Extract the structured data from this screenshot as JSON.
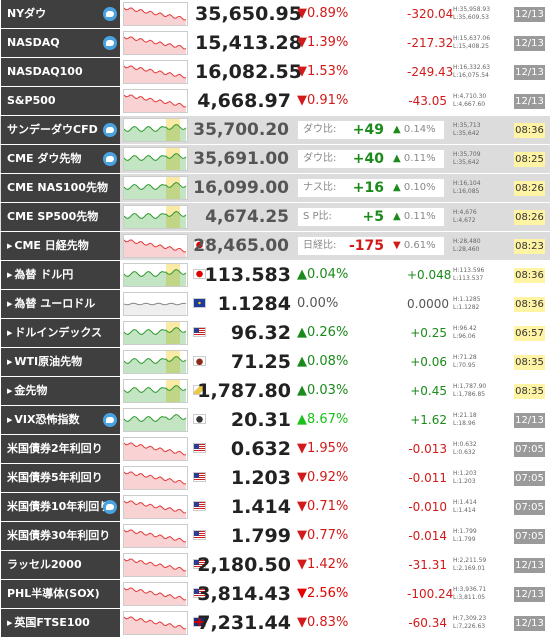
{
  "colors": {
    "up": "#1a8a1a",
    "down": "#d21a1a",
    "name_bg": "#3f3f3f",
    "fut_bg": "#dcdcdc",
    "time_live": "#fff3a4",
    "time_closed": "#9a9a9a"
  },
  "rows": [
    {
      "type": "idx",
      "name": "NYダウ",
      "tw": true,
      "spark": "red",
      "dir": "down",
      "price": "35,650.95",
      "pct": "0.89%",
      "chg": "-320.04",
      "high": "H:35,958.93",
      "low": "L:35,609.53",
      "time": "12/13",
      "timeStyle": "gray"
    },
    {
      "type": "idx",
      "name": "NASDAQ",
      "tw": true,
      "spark": "red",
      "dir": "down",
      "price": "15,413.28",
      "pct": "1.39%",
      "chg": "-217.32",
      "high": "H:15,637.06",
      "low": "L:15,408.25",
      "time": "12/13",
      "timeStyle": "gray"
    },
    {
      "type": "idx",
      "name": "NASDAQ100",
      "tw": false,
      "spark": "red",
      "dir": "down",
      "price": "16,082.55",
      "pct": "1.53%",
      "chg": "-249.43",
      "high": "H:16,332.63",
      "low": "L:16,075.54",
      "time": "12/13",
      "timeStyle": "gray"
    },
    {
      "type": "idx",
      "name": "S&P500",
      "tw": false,
      "spark": "red",
      "dir": "down",
      "price": "4,668.97",
      "pct": "0.91%",
      "chg": "-43.05",
      "high": "H:4,710.30",
      "low": "L:4,667.60",
      "time": "12/13",
      "timeStyle": "gray"
    },
    {
      "type": "fut",
      "name": "サンデーダウCFD",
      "tw": true,
      "spark": "green",
      "price": "35,700.20",
      "label": "ダウ比:",
      "dir": "up",
      "diff": "+49",
      "pct": "0.14%",
      "high": "H:35,713",
      "low": "L:35,642",
      "time": "08:36",
      "timeStyle": "yellow"
    },
    {
      "type": "fut",
      "name": "CME ダウ先物",
      "tw": true,
      "spark": "green",
      "price": "35,691.00",
      "label": "ダウ比:",
      "dir": "up",
      "diff": "+40",
      "pct": "0.11%",
      "high": "H:35,709",
      "low": "L:35,642",
      "time": "08:25",
      "timeStyle": "yellow"
    },
    {
      "type": "fut",
      "name": "CME NAS100先物",
      "tw": false,
      "spark": "green",
      "price": "16,099.00",
      "label": "ナス比:",
      "dir": "up",
      "diff": "+16",
      "pct": "0.10%",
      "high": "H:16,104",
      "low": "L:16,085",
      "time": "08:26",
      "timeStyle": "yellow"
    },
    {
      "type": "fut",
      "name": "CME SP500先物",
      "tw": false,
      "spark": "green",
      "price": "4,674.25",
      "label": "S P比:",
      "dir": "up",
      "diff": "+5",
      "pct": "0.11%",
      "high": "H:4,676",
      "low": "L:4,672",
      "time": "08:26",
      "timeStyle": "yellow"
    },
    {
      "type": "fut",
      "name": "CME 日経先物",
      "tri": true,
      "tw": false,
      "spark": "red",
      "flag": "jp",
      "price": "28,465.00",
      "label": "日経比:",
      "dir": "down",
      "diff": "-175",
      "pct": "0.61%",
      "high": "H:28,480",
      "low": "L:28,460",
      "time": "08:23",
      "timeStyle": "yellow"
    },
    {
      "type": "fx",
      "name": "為替 ドル円",
      "tri": true,
      "tw": false,
      "spark": "green",
      "flag": "jp",
      "dir": "up",
      "price": "113.583",
      "pct": "0.04%",
      "chg": "+0.048",
      "high": "H:113.596",
      "low": "L:113.537",
      "time": "08:36",
      "timeStyle": "yellow"
    },
    {
      "type": "fx",
      "name": "為替 ユーロドル",
      "tri": true,
      "tw": false,
      "spark": "flat",
      "flag": "eu",
      "dir": "flat",
      "price": "1.1284",
      "pct": "0.00%",
      "chg": "0.0000",
      "high": "H:1.1285",
      "low": "L:1.1282",
      "time": "08:36",
      "timeStyle": "yellow"
    },
    {
      "type": "fx",
      "name": "ドルインデックス",
      "tri": true,
      "tw": false,
      "spark": "green",
      "flag": "us",
      "dir": "up",
      "price": "96.32",
      "pct": "0.26%",
      "chg": "+0.25",
      "high": "H:96.42",
      "low": "L:96.06",
      "time": "06:57",
      "timeStyle": "yellow"
    },
    {
      "type": "fx",
      "name": "WTI原油先物",
      "tri": true,
      "tw": false,
      "spark": "green",
      "flag": "oil",
      "dir": "up",
      "price": "71.25",
      "pct": "0.08%",
      "chg": "+0.06",
      "high": "H:71.28",
      "low": "L:70.95",
      "time": "08:35",
      "timeStyle": "yellow"
    },
    {
      "type": "fx",
      "name": "金先物",
      "tri": true,
      "tw": false,
      "spark": "green",
      "flag": "gold",
      "dir": "up",
      "price": "1,787.80",
      "pct": "0.03%",
      "chg": "+0.45",
      "high": "H:1,787.90",
      "low": "L:1,786.85",
      "time": "08:35",
      "timeStyle": "yellow"
    },
    {
      "type": "fx",
      "name": "VIX恐怖指数",
      "tri": true,
      "tw": true,
      "spark": "greenbar",
      "flag": "vix",
      "dir": "up",
      "pctColor": "#19c119",
      "price": "20.31",
      "pct": "8.67%",
      "chg": "+1.62",
      "high": "H:21.18",
      "low": "L:18.96",
      "time": "12/13",
      "timeStyle": "gray"
    },
    {
      "type": "bond",
      "name": "米国債券2年利回り",
      "tw": false,
      "spark": "red",
      "flag": "us",
      "dir": "down",
      "price": "0.632",
      "pct": "1.95%",
      "chg": "-0.013",
      "high": "H:0.632",
      "low": "L:0.632",
      "time": "07:05",
      "timeStyle": "gray"
    },
    {
      "type": "bond",
      "name": "米国債券5年利回り",
      "tw": false,
      "spark": "red",
      "flag": "us",
      "dir": "down",
      "price": "1.203",
      "pct": "0.92%",
      "chg": "-0.011",
      "high": "H:1.203",
      "low": "L:1.203",
      "time": "07:05",
      "timeStyle": "gray"
    },
    {
      "type": "bond",
      "name": "米国債券10年利回り",
      "tw": true,
      "spark": "red",
      "flag": "us",
      "dir": "down",
      "price": "1.414",
      "pct": "0.71%",
      "chg": "-0.010",
      "high": "H:1.414",
      "low": "L:1.414",
      "time": "07:05",
      "timeStyle": "gray"
    },
    {
      "type": "bond",
      "name": "米国債券30年利回り",
      "tw": false,
      "spark": "red",
      "flag": "us",
      "dir": "down",
      "price": "1.799",
      "pct": "0.77%",
      "chg": "-0.014",
      "high": "H:1.799",
      "low": "L:1.799",
      "time": "07:05",
      "timeStyle": "gray"
    },
    {
      "type": "idx",
      "name": "ラッセル2000",
      "tw": false,
      "spark": "red",
      "flag": "us",
      "dir": "down",
      "price": "2,180.50",
      "pct": "1.42%",
      "chg": "-31.31",
      "high": "H:2,211.59",
      "low": "L:2,169.01",
      "time": "12/13",
      "timeStyle": "gray"
    },
    {
      "type": "idx",
      "name": "PHL半導体(SOX)",
      "tw": false,
      "spark": "red",
      "flag": "us",
      "dir": "down",
      "pctColor": "#e60000",
      "price": "3,814.43",
      "pct": "2.56%",
      "chg": "-100.24",
      "high": "H:3,936.71",
      "low": "L:3,811.05",
      "time": "12/13",
      "timeStyle": "gray"
    },
    {
      "type": "idx",
      "name": "英国FTSE100",
      "tri": true,
      "tw": false,
      "spark": "red",
      "flag": "uk",
      "dir": "down",
      "price": "7,231.44",
      "pct": "0.83%",
      "chg": "-60.34",
      "high": "H:7,309.23",
      "low": "L:7,226.63",
      "time": "12/13",
      "timeStyle": "gray"
    }
  ]
}
